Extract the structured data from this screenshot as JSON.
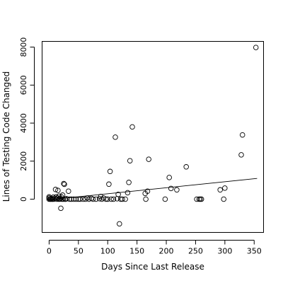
{
  "chart_data": {
    "type": "scatter",
    "title": "",
    "xlabel": "Days Since Last Release",
    "ylabel": "Lines of Testing Code Changed",
    "xlim": [
      -12,
      366
    ],
    "ylim": [
      -1750,
      8300
    ],
    "x_ticks": [
      0,
      50,
      100,
      150,
      200,
      250,
      300,
      350
    ],
    "y_ticks": [
      0,
      2000,
      4000,
      6000,
      8000
    ],
    "grid": false,
    "legend": "none",
    "marker": "open-circle",
    "trend_line": {
      "x": [
        0,
        355
      ],
      "y": [
        -30,
        1090
      ]
    },
    "points": [
      [
        0,
        0
      ],
      [
        0,
        60
      ],
      [
        0,
        120
      ],
      [
        2,
        0
      ],
      [
        3,
        0
      ],
      [
        4,
        40
      ],
      [
        5,
        0
      ],
      [
        6,
        0
      ],
      [
        7,
        100
      ],
      [
        8,
        0
      ],
      [
        10,
        40
      ],
      [
        11,
        510
      ],
      [
        12,
        120
      ],
      [
        13,
        0
      ],
      [
        14,
        60
      ],
      [
        15,
        460
      ],
      [
        16,
        0
      ],
      [
        17,
        160
      ],
      [
        18,
        0
      ],
      [
        19,
        20
      ],
      [
        20,
        -480
      ],
      [
        21,
        120
      ],
      [
        22,
        0
      ],
      [
        23,
        210
      ],
      [
        24,
        0
      ],
      [
        25,
        820
      ],
      [
        26,
        780
      ],
      [
        27,
        0
      ],
      [
        28,
        0
      ],
      [
        30,
        20
      ],
      [
        33,
        420
      ],
      [
        35,
        0
      ],
      [
        38,
        0
      ],
      [
        42,
        0
      ],
      [
        46,
        0
      ],
      [
        50,
        0
      ],
      [
        53,
        0
      ],
      [
        58,
        0
      ],
      [
        62,
        0
      ],
      [
        65,
        60
      ],
      [
        68,
        0
      ],
      [
        72,
        40
      ],
      [
        75,
        0
      ],
      [
        80,
        0
      ],
      [
        86,
        20
      ],
      [
        88,
        140
      ],
      [
        90,
        0
      ],
      [
        93,
        60
      ],
      [
        97,
        0
      ],
      [
        100,
        0
      ],
      [
        102,
        790
      ],
      [
        104,
        1460
      ],
      [
        106,
        0
      ],
      [
        110,
        0
      ],
      [
        113,
        3260
      ],
      [
        116,
        20
      ],
      [
        118,
        250
      ],
      [
        120,
        -1300
      ],
      [
        122,
        0
      ],
      [
        125,
        0
      ],
      [
        130,
        0
      ],
      [
        134,
        340
      ],
      [
        136,
        880
      ],
      [
        138,
        2020
      ],
      [
        142,
        3800
      ],
      [
        164,
        300
      ],
      [
        165,
        0
      ],
      [
        168,
        420
      ],
      [
        170,
        2100
      ],
      [
        198,
        0
      ],
      [
        205,
        1140
      ],
      [
        208,
        560
      ],
      [
        218,
        490
      ],
      [
        234,
        1700
      ],
      [
        252,
        0
      ],
      [
        256,
        0
      ],
      [
        258,
        0
      ],
      [
        260,
        0
      ],
      [
        292,
        490
      ],
      [
        298,
        0
      ],
      [
        300,
        580
      ],
      [
        328,
        2330
      ],
      [
        330,
        3380
      ],
      [
        353,
        7980
      ]
    ]
  }
}
